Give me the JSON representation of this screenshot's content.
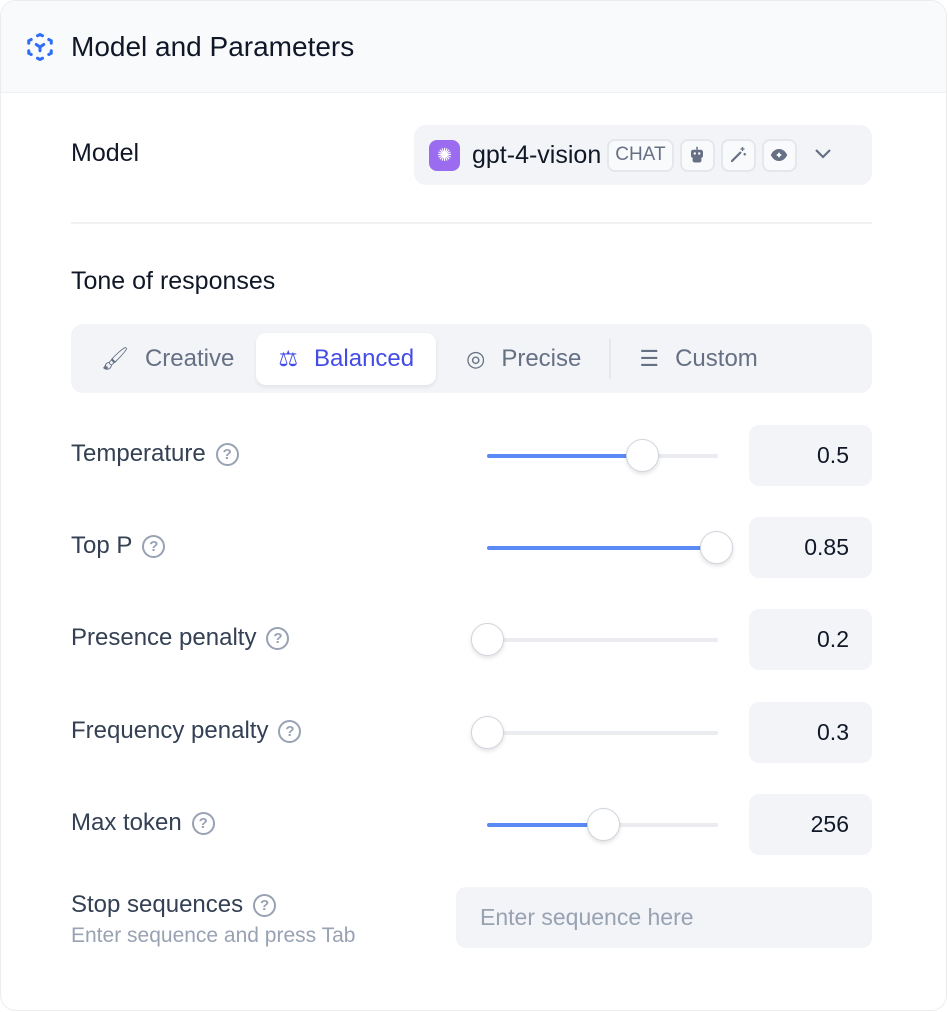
{
  "header": {
    "title": "Model and Parameters",
    "icon": "cube-dashed-icon"
  },
  "model": {
    "label": "Model",
    "name": "gpt-4-vision",
    "badge": "CHAT",
    "feature_icons": [
      "robot-icon",
      "magic-wand-icon",
      "eye-icon"
    ]
  },
  "tone": {
    "title": "Tone of responses",
    "tabs": [
      {
        "label": "Creative",
        "icon": "brush-icon"
      },
      {
        "label": "Balanced",
        "icon": "scale-icon",
        "active": true
      },
      {
        "label": "Precise",
        "icon": "target-icon"
      },
      {
        "label": "Custom",
        "icon": "sliders-icon"
      }
    ]
  },
  "accent": "#444ce7",
  "params": [
    {
      "label": "Temperature",
      "value": "0.5",
      "fill": 0.67
    },
    {
      "label": "Top P",
      "value": "0.85",
      "fill": 0.99
    },
    {
      "label": "Presence penalty",
      "value": "0.2",
      "fill": 0
    },
    {
      "label": "Frequency penalty",
      "value": "0.3",
      "fill": 0
    },
    {
      "label": "Max token",
      "value": "256",
      "fill": 0.5
    }
  ],
  "stop": {
    "label": "Stop sequences",
    "hint": "Enter sequence and press Tab",
    "placeholder": "Enter sequence here"
  }
}
